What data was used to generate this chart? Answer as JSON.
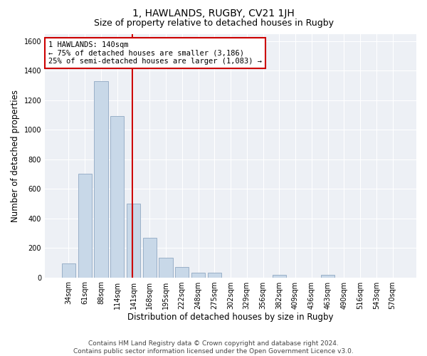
{
  "title": "1, HAWLANDS, RUGBY, CV21 1JH",
  "subtitle": "Size of property relative to detached houses in Rugby",
  "xlabel": "Distribution of detached houses by size in Rugby",
  "ylabel": "Number of detached properties",
  "categories": [
    "34sqm",
    "61sqm",
    "88sqm",
    "114sqm",
    "141sqm",
    "168sqm",
    "195sqm",
    "222sqm",
    "248sqm",
    "275sqm",
    "302sqm",
    "329sqm",
    "356sqm",
    "382sqm",
    "409sqm",
    "436sqm",
    "463sqm",
    "490sqm",
    "516sqm",
    "543sqm",
    "570sqm"
  ],
  "values": [
    95,
    700,
    1330,
    1095,
    500,
    270,
    135,
    70,
    32,
    32,
    0,
    0,
    0,
    15,
    0,
    0,
    15,
    0,
    0,
    0,
    0
  ],
  "bar_color": "#c8d8e8",
  "bar_edgecolor": "#9ab0c8",
  "annotation_text": "1 HAWLANDS: 140sqm\n← 75% of detached houses are smaller (3,186)\n25% of semi-detached houses are larger (1,083) →",
  "annotation_box_facecolor": "#ffffff",
  "annotation_box_edgecolor": "#cc0000",
  "red_line_x": 3.925,
  "ylim": [
    0,
    1650
  ],
  "yticks": [
    0,
    200,
    400,
    600,
    800,
    1000,
    1200,
    1400,
    1600
  ],
  "footer_line1": "Contains HM Land Registry data © Crown copyright and database right 2024.",
  "footer_line2": "Contains public sector information licensed under the Open Government Licence v3.0.",
  "fig_facecolor": "#ffffff",
  "axes_facecolor": "#edf0f5",
  "title_fontsize": 10,
  "subtitle_fontsize": 9,
  "axis_label_fontsize": 8.5,
  "tick_fontsize": 7,
  "annotation_fontsize": 7.5,
  "footer_fontsize": 6.5,
  "grid_color": "#ffffff"
}
